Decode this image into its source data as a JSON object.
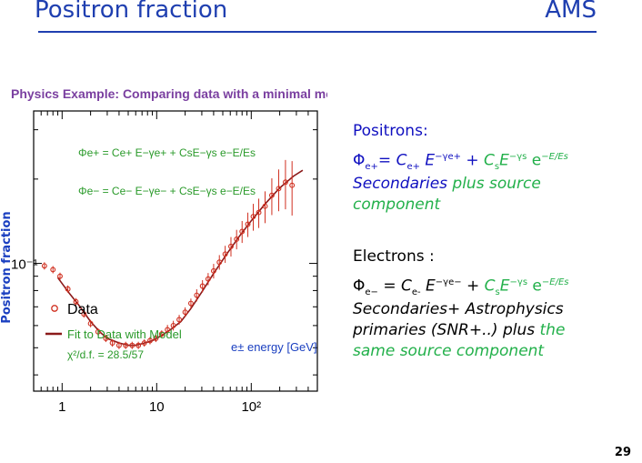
{
  "slide": {
    "title": "Positron fraction",
    "title_right": "AMS",
    "page_number": "29"
  },
  "right_panel": {
    "positrons_heading": "Positrons:",
    "positron_formula": {
      "phi": "Φ",
      "phi_sub": "e+",
      "eq": "= ",
      "c": "C",
      "c_sub": "e+",
      "e": "E",
      "exp": "−γe+",
      "plus": " + ",
      "cs": "C",
      "cs_sub": "s",
      "es": "E",
      "es_exp": "−γs",
      "expo": " e",
      "expo_sup": "−E/Es"
    },
    "secondaries": "Secondaries",
    "plus_source": " plus source",
    "component": "component",
    "electrons_heading": "Electrons :",
    "electron_formula": {
      "phi": "Φ",
      "phi_sub": "e−",
      "eq": " = ",
      "c": "C",
      "c_sub": "e-",
      "e": "E",
      "exp": "−γe−",
      "plus": " + ",
      "cs": "C",
      "cs_sub": "s",
      "es": "E",
      "es_exp": "−γs",
      "expo": " e",
      "expo_sup": "−E/Es"
    },
    "line_secondaries_astro": "Secondaries+ Astrophysics",
    "line_primaries": "primaries (SNR+..) plus ",
    "line_primaries_green": "the",
    "line_same_source": "same source component"
  },
  "chart_data": {
    "type": "scatter",
    "header": "Physics Example: Comparing data with a minimal model.",
    "ylabel": "Positron fraction",
    "xlabel": "e± energy [GeV]",
    "xscale": "log",
    "yscale": "log",
    "xlim": [
      0.5,
      500
    ],
    "ylim": [
      0.035,
      0.35
    ],
    "x_tick_labels": [
      "1",
      "10",
      "10²"
    ],
    "y_tick_labels": [
      "10⁻¹"
    ],
    "formula_positron": "Φe+ = Ce+ E−γe+ + CsE−γs e−E/Es",
    "formula_electron": "Φe− = Ce− E−γe− + CsE−γs e−E/Es",
    "legend": {
      "placement": "bottom-left",
      "data_label": "Data",
      "fit_label": "Fit to Data with Model",
      "chi2_label": "χ²/d.f. = 28.5/57"
    },
    "colors": {
      "data": "#d03020",
      "fit": "#8b1a1a",
      "header": "#7a3fa0",
      "formula": "#2a9a2a",
      "axis_label": "#1a3fc0"
    },
    "series": [
      {
        "name": "Data",
        "x": [
          0.65,
          0.8,
          0.95,
          1.15,
          1.4,
          1.7,
          2.0,
          2.4,
          2.9,
          3.4,
          4.0,
          4.7,
          5.5,
          6.4,
          7.4,
          8.5,
          9.8,
          11.3,
          13.0,
          15.0,
          17.3,
          20.0,
          23.0,
          26.5,
          30.5,
          35.0,
          40.0,
          46.0,
          53.0,
          61.0,
          70.0,
          80.0,
          92.0,
          105.0,
          120.0,
          140.0,
          165.0,
          195.0,
          230.0,
          270.0
        ],
        "y": [
          0.098,
          0.095,
          0.09,
          0.081,
          0.073,
          0.066,
          0.061,
          0.057,
          0.054,
          0.052,
          0.051,
          0.051,
          0.051,
          0.051,
          0.052,
          0.053,
          0.054,
          0.056,
          0.058,
          0.06,
          0.063,
          0.067,
          0.072,
          0.077,
          0.083,
          0.088,
          0.094,
          0.101,
          0.108,
          0.115,
          0.122,
          0.13,
          0.138,
          0.147,
          0.152,
          0.16,
          0.175,
          0.185,
          0.195,
          0.19
        ],
        "err_rel": [
          0.03,
          0.03,
          0.03,
          0.03,
          0.03,
          0.03,
          0.03,
          0.03,
          0.03,
          0.03,
          0.03,
          0.03,
          0.03,
          0.03,
          0.03,
          0.03,
          0.03,
          0.03,
          0.04,
          0.04,
          0.04,
          0.04,
          0.04,
          0.05,
          0.05,
          0.05,
          0.06,
          0.06,
          0.07,
          0.08,
          0.08,
          0.09,
          0.1,
          0.11,
          0.12,
          0.13,
          0.15,
          0.17,
          0.2,
          0.22
        ]
      },
      {
        "name": "Fit to Data with Model",
        "type": "line",
        "x": [
          0.9,
          1.2,
          1.5,
          2.0,
          2.5,
          3.0,
          4.0,
          5.0,
          6.0,
          7.5,
          9.0,
          11.0,
          14.0,
          18.0,
          23.0,
          30.0,
          40.0,
          55.0,
          75.0,
          100.0,
          140.0,
          200.0,
          280.0,
          350.0
        ],
        "y": [
          0.089,
          0.078,
          0.071,
          0.062,
          0.057,
          0.054,
          0.052,
          0.051,
          0.051,
          0.052,
          0.053,
          0.055,
          0.058,
          0.062,
          0.069,
          0.079,
          0.092,
          0.108,
          0.125,
          0.142,
          0.163,
          0.186,
          0.205,
          0.215
        ]
      }
    ]
  }
}
